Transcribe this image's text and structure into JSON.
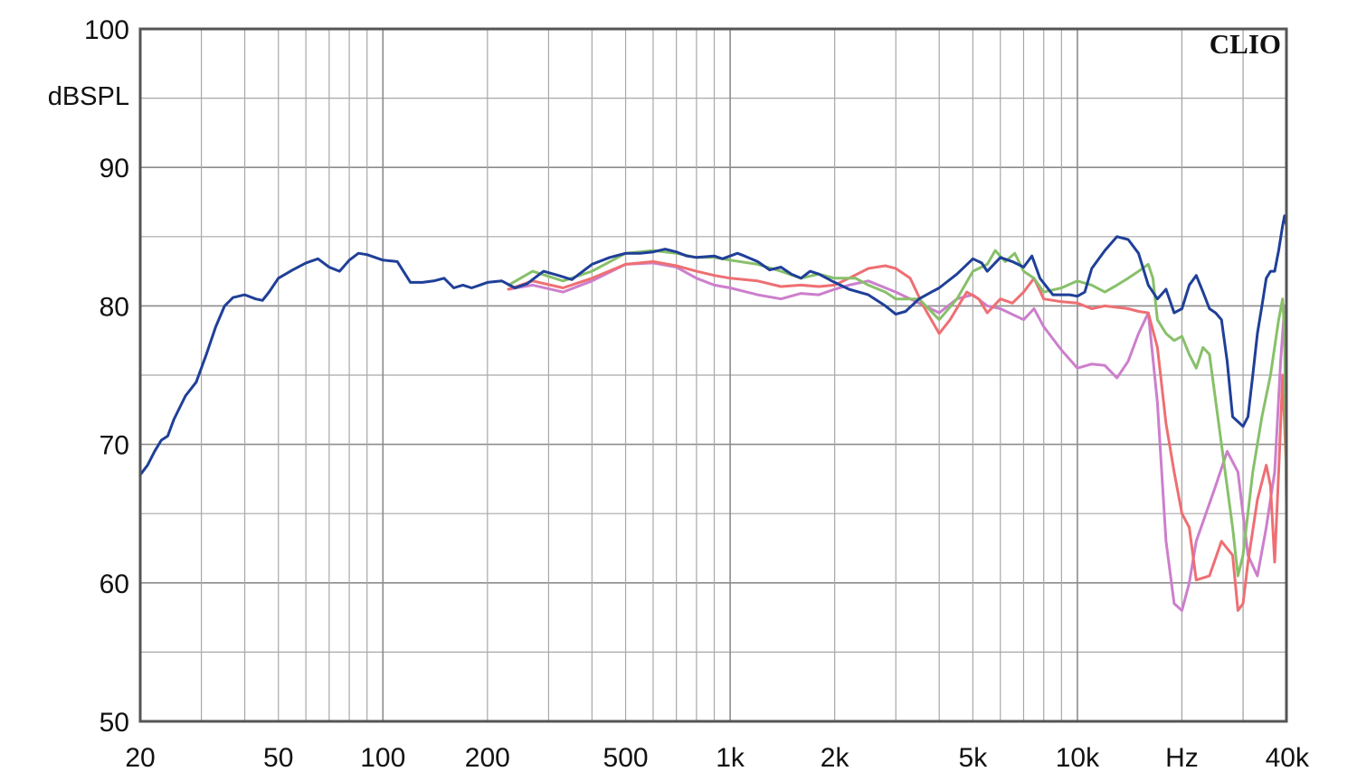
{
  "chart_data": {
    "type": "line",
    "brand": "CLIO",
    "ylabel": "dBSPL",
    "xlabel": "Hz",
    "x_scale": "log",
    "xlim": [
      20,
      40000
    ],
    "ylim": [
      50,
      100
    ],
    "y_ticks": [
      50,
      60,
      70,
      80,
      90,
      100
    ],
    "x_ticks": [
      {
        "value": 20,
        "label": "20"
      },
      {
        "value": 50,
        "label": "50"
      },
      {
        "value": 100,
        "label": "100"
      },
      {
        "value": 200,
        "label": "200"
      },
      {
        "value": 500,
        "label": "500"
      },
      {
        "value": 1000,
        "label": "1k"
      },
      {
        "value": 2000,
        "label": "2k"
      },
      {
        "value": 5000,
        "label": "5k"
      },
      {
        "value": 10000,
        "label": "10k"
      },
      {
        "value": 20000,
        "label": "Hz"
      },
      {
        "value": 40000,
        "label": "40k"
      }
    ],
    "grid": true,
    "series": [
      {
        "color": "#cc7fcc",
        "points": [
          [
            230,
            81.2
          ],
          [
            270,
            81.5
          ],
          [
            330,
            81.0
          ],
          [
            400,
            81.8
          ],
          [
            500,
            83.0
          ],
          [
            600,
            83.1
          ],
          [
            700,
            82.8
          ],
          [
            800,
            82.0
          ],
          [
            900,
            81.5
          ],
          [
            1000,
            81.3
          ],
          [
            1200,
            80.8
          ],
          [
            1400,
            80.5
          ],
          [
            1600,
            80.9
          ],
          [
            1800,
            80.8
          ],
          [
            2000,
            81.2
          ],
          [
            2200,
            81.5
          ],
          [
            2500,
            81.8
          ],
          [
            3000,
            81.0
          ],
          [
            3500,
            80.2
          ],
          [
            4000,
            79.5
          ],
          [
            4500,
            80.5
          ],
          [
            5000,
            80.8
          ],
          [
            5500,
            80.0
          ],
          [
            6000,
            79.8
          ],
          [
            7000,
            79.0
          ],
          [
            7500,
            79.8
          ],
          [
            8000,
            78.5
          ],
          [
            9000,
            76.8
          ],
          [
            10000,
            75.5
          ],
          [
            11000,
            75.8
          ],
          [
            12000,
            75.7
          ],
          [
            13000,
            74.8
          ],
          [
            14000,
            76.0
          ],
          [
            15000,
            78.0
          ],
          [
            16000,
            79.5
          ],
          [
            17000,
            73.0
          ],
          [
            18000,
            63.0
          ],
          [
            19000,
            58.5
          ],
          [
            20000,
            58.0
          ],
          [
            21000,
            60.0
          ],
          [
            22000,
            63.0
          ],
          [
            25000,
            67.0
          ],
          [
            27000,
            69.5
          ],
          [
            29000,
            68.0
          ],
          [
            31000,
            62.0
          ],
          [
            33000,
            60.5
          ],
          [
            35000,
            64.0
          ],
          [
            37000,
            68.0
          ],
          [
            38500,
            76.0
          ],
          [
            39500,
            80.0
          ],
          [
            40000,
            65.0
          ]
        ]
      },
      {
        "color": "#ee6f73",
        "points": [
          [
            230,
            81.2
          ],
          [
            270,
            81.8
          ],
          [
            330,
            81.3
          ],
          [
            400,
            82.0
          ],
          [
            500,
            83.0
          ],
          [
            600,
            83.2
          ],
          [
            700,
            82.9
          ],
          [
            800,
            82.5
          ],
          [
            900,
            82.2
          ],
          [
            1000,
            82.0
          ],
          [
            1200,
            81.8
          ],
          [
            1400,
            81.4
          ],
          [
            1600,
            81.5
          ],
          [
            1800,
            81.4
          ],
          [
            2000,
            81.5
          ],
          [
            2200,
            82.0
          ],
          [
            2500,
            82.7
          ],
          [
            2800,
            82.9
          ],
          [
            3000,
            82.7
          ],
          [
            3300,
            82.0
          ],
          [
            3600,
            80.0
          ],
          [
            4000,
            78.0
          ],
          [
            4300,
            79.0
          ],
          [
            4800,
            81.0
          ],
          [
            5200,
            80.5
          ],
          [
            5500,
            79.5
          ],
          [
            6000,
            80.5
          ],
          [
            6500,
            80.2
          ],
          [
            7000,
            81.0
          ],
          [
            7500,
            82.0
          ],
          [
            8000,
            80.5
          ],
          [
            9000,
            80.3
          ],
          [
            10000,
            80.2
          ],
          [
            11000,
            79.8
          ],
          [
            12000,
            80.0
          ],
          [
            14000,
            79.8
          ],
          [
            15000,
            79.6
          ],
          [
            16000,
            79.5
          ],
          [
            17000,
            77.0
          ],
          [
            18000,
            71.5
          ],
          [
            19000,
            68.0
          ],
          [
            20000,
            65.0
          ],
          [
            21000,
            64.0
          ],
          [
            22000,
            60.2
          ],
          [
            24000,
            60.5
          ],
          [
            26000,
            63.0
          ],
          [
            28000,
            62.0
          ],
          [
            29000,
            58.0
          ],
          [
            30000,
            58.5
          ],
          [
            31000,
            61.5
          ],
          [
            33000,
            66.0
          ],
          [
            35000,
            68.5
          ],
          [
            36000,
            67.0
          ],
          [
            37000,
            61.5
          ],
          [
            38000,
            68.0
          ],
          [
            39000,
            75.0
          ],
          [
            40000,
            68.0
          ]
        ]
      },
      {
        "color": "#88c06a",
        "points": [
          [
            230,
            81.5
          ],
          [
            270,
            82.5
          ],
          [
            330,
            81.8
          ],
          [
            400,
            82.5
          ],
          [
            500,
            83.8
          ],
          [
            600,
            84.0
          ],
          [
            700,
            83.8
          ],
          [
            800,
            83.5
          ],
          [
            900,
            83.5
          ],
          [
            1000,
            83.3
          ],
          [
            1200,
            83.0
          ],
          [
            1400,
            82.5
          ],
          [
            1600,
            82.0
          ],
          [
            1800,
            82.3
          ],
          [
            2000,
            82.0
          ],
          [
            2300,
            82.0
          ],
          [
            2500,
            81.5
          ],
          [
            2800,
            81.0
          ],
          [
            3000,
            80.5
          ],
          [
            3500,
            80.5
          ],
          [
            4000,
            79.0
          ],
          [
            4500,
            80.5
          ],
          [
            5000,
            82.5
          ],
          [
            5500,
            83.0
          ],
          [
            5800,
            84.0
          ],
          [
            6200,
            83.2
          ],
          [
            6600,
            83.8
          ],
          [
            7000,
            82.5
          ],
          [
            7500,
            82.0
          ],
          [
            8000,
            81.0
          ],
          [
            9000,
            81.3
          ],
          [
            10000,
            81.8
          ],
          [
            11000,
            81.5
          ],
          [
            12000,
            81.0
          ],
          [
            13000,
            81.5
          ],
          [
            14000,
            82.0
          ],
          [
            15000,
            82.5
          ],
          [
            16000,
            83.0
          ],
          [
            16500,
            82.0
          ],
          [
            17000,
            79.0
          ],
          [
            18000,
            78.0
          ],
          [
            19000,
            77.5
          ],
          [
            20000,
            77.8
          ],
          [
            21000,
            76.5
          ],
          [
            22000,
            75.5
          ],
          [
            23000,
            77.0
          ],
          [
            24000,
            76.5
          ],
          [
            26000,
            70.0
          ],
          [
            28000,
            64.0
          ],
          [
            29000,
            60.5
          ],
          [
            30000,
            62.0
          ],
          [
            32000,
            68.0
          ],
          [
            34000,
            72.0
          ],
          [
            36000,
            75.0
          ],
          [
            38000,
            79.0
          ],
          [
            39000,
            80.5
          ],
          [
            39500,
            78.0
          ],
          [
            40000,
            66.0
          ]
        ]
      },
      {
        "color": "#1f3f98",
        "points": [
          [
            20,
            67.8
          ],
          [
            21,
            68.5
          ],
          [
            22,
            69.5
          ],
          [
            23,
            70.3
          ],
          [
            24,
            70.6
          ],
          [
            25,
            71.8
          ],
          [
            27,
            73.5
          ],
          [
            29,
            74.5
          ],
          [
            31,
            76.5
          ],
          [
            33,
            78.5
          ],
          [
            35,
            80.0
          ],
          [
            37,
            80.6
          ],
          [
            40,
            80.8
          ],
          [
            43,
            80.5
          ],
          [
            45,
            80.4
          ],
          [
            47,
            81.0
          ],
          [
            50,
            82.0
          ],
          [
            55,
            82.6
          ],
          [
            60,
            83.1
          ],
          [
            65,
            83.4
          ],
          [
            70,
            82.8
          ],
          [
            75,
            82.5
          ],
          [
            80,
            83.3
          ],
          [
            85,
            83.8
          ],
          [
            90,
            83.7
          ],
          [
            100,
            83.3
          ],
          [
            110,
            83.2
          ],
          [
            120,
            81.7
          ],
          [
            130,
            81.7
          ],
          [
            140,
            81.8
          ],
          [
            150,
            82.0
          ],
          [
            160,
            81.3
          ],
          [
            170,
            81.5
          ],
          [
            180,
            81.3
          ],
          [
            190,
            81.5
          ],
          [
            200,
            81.7
          ],
          [
            220,
            81.8
          ],
          [
            240,
            81.3
          ],
          [
            260,
            81.6
          ],
          [
            290,
            82.5
          ],
          [
            320,
            82.2
          ],
          [
            350,
            81.9
          ],
          [
            400,
            83.0
          ],
          [
            450,
            83.5
          ],
          [
            500,
            83.8
          ],
          [
            550,
            83.8
          ],
          [
            600,
            83.9
          ],
          [
            650,
            84.1
          ],
          [
            700,
            83.9
          ],
          [
            750,
            83.6
          ],
          [
            800,
            83.5
          ],
          [
            900,
            83.6
          ],
          [
            950,
            83.4
          ],
          [
            1050,
            83.8
          ],
          [
            1100,
            83.6
          ],
          [
            1200,
            83.2
          ],
          [
            1300,
            82.6
          ],
          [
            1400,
            82.8
          ],
          [
            1500,
            82.3
          ],
          [
            1600,
            82.0
          ],
          [
            1700,
            82.5
          ],
          [
            1800,
            82.3
          ],
          [
            2000,
            81.7
          ],
          [
            2200,
            81.2
          ],
          [
            2500,
            80.8
          ],
          [
            2800,
            80.0
          ],
          [
            3000,
            79.4
          ],
          [
            3200,
            79.6
          ],
          [
            3500,
            80.5
          ],
          [
            3800,
            81.0
          ],
          [
            4000,
            81.3
          ],
          [
            4500,
            82.3
          ],
          [
            5000,
            83.4
          ],
          [
            5300,
            83.1
          ],
          [
            5500,
            82.5
          ],
          [
            6000,
            83.5
          ],
          [
            6500,
            83.2
          ],
          [
            7000,
            82.8
          ],
          [
            7400,
            83.6
          ],
          [
            7800,
            82.0
          ],
          [
            8500,
            80.8
          ],
          [
            9500,
            80.8
          ],
          [
            10000,
            80.7
          ],
          [
            10500,
            81.0
          ],
          [
            11000,
            82.7
          ],
          [
            12000,
            84.0
          ],
          [
            13000,
            85.0
          ],
          [
            14000,
            84.8
          ],
          [
            15000,
            83.8
          ],
          [
            16000,
            81.5
          ],
          [
            17000,
            80.5
          ],
          [
            18000,
            81.2
          ],
          [
            19000,
            79.5
          ],
          [
            20000,
            79.8
          ],
          [
            21000,
            81.5
          ],
          [
            22000,
            82.2
          ],
          [
            23000,
            81.0
          ],
          [
            24000,
            79.8
          ],
          [
            25000,
            79.5
          ],
          [
            26000,
            79.0
          ],
          [
            27000,
            76.0
          ],
          [
            28000,
            72.0
          ],
          [
            30000,
            71.3
          ],
          [
            31000,
            72.0
          ],
          [
            32000,
            75.0
          ],
          [
            33000,
            78.0
          ],
          [
            34000,
            80.0
          ],
          [
            35000,
            82.0
          ],
          [
            36000,
            82.5
          ],
          [
            37000,
            82.5
          ],
          [
            38000,
            84.0
          ],
          [
            39000,
            85.8
          ],
          [
            39500,
            86.5
          ],
          [
            40000,
            85.8
          ]
        ]
      }
    ]
  }
}
